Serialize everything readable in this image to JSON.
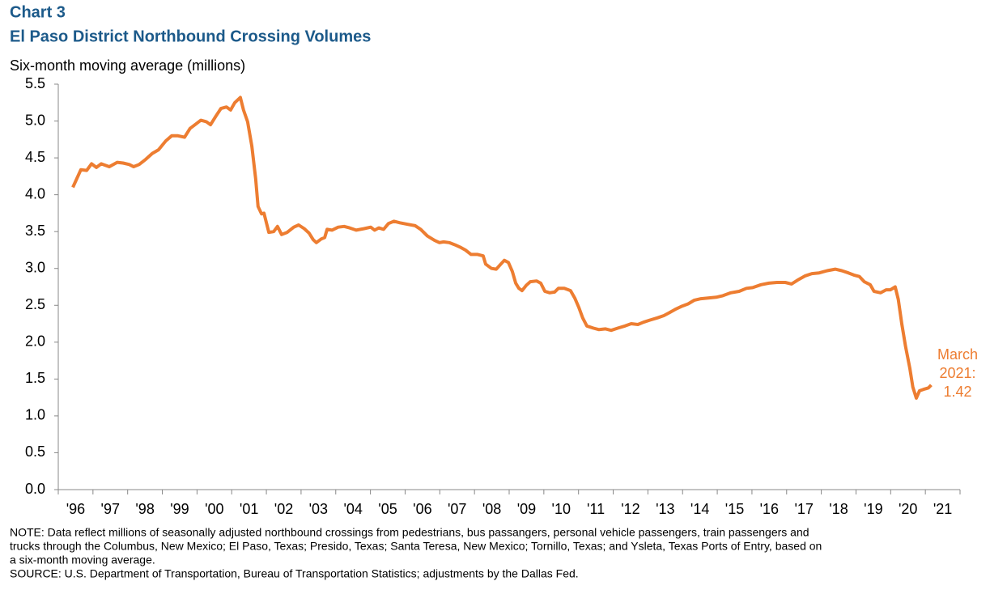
{
  "chart_data": {
    "type": "line",
    "title": "Chart 3",
    "subtitle": "El Paso District Northbound Crossing Volumes",
    "y_label": "Six-month  moving  average (millions)",
    "x": [
      1996.42,
      1996.65,
      1996.82,
      1996.96,
      1997.1,
      1997.24,
      1997.47,
      1997.7,
      1997.87,
      1998.05,
      1998.17,
      1998.33,
      1998.52,
      1998.71,
      1998.89,
      1999.1,
      1999.27,
      1999.45,
      1999.64,
      1999.8,
      1999.97,
      2000.11,
      2000.27,
      2000.39,
      2000.55,
      2000.69,
      2000.85,
      2000.97,
      2001.09,
      2001.25,
      2001.34,
      2001.46,
      2001.58,
      2001.69,
      2001.76,
      2001.86,
      2001.93,
      2002.07,
      2002.21,
      2002.32,
      2002.44,
      2002.6,
      2002.79,
      2002.93,
      2003.09,
      2003.23,
      2003.35,
      2003.44,
      2003.58,
      2003.68,
      2003.75,
      2003.89,
      2004.07,
      2004.24,
      2004.4,
      2004.59,
      2004.82,
      2005.01,
      2005.12,
      2005.24,
      2005.38,
      2005.52,
      2005.68,
      2005.85,
      2006.06,
      2006.29,
      2006.45,
      2006.64,
      2006.85,
      2006.99,
      2007.11,
      2007.27,
      2007.44,
      2007.58,
      2007.74,
      2007.9,
      2008.09,
      2008.25,
      2008.32,
      2008.49,
      2008.63,
      2008.74,
      2008.86,
      2008.98,
      2009.09,
      2009.19,
      2009.28,
      2009.37,
      2009.49,
      2009.61,
      2009.79,
      2009.91,
      2010.03,
      2010.17,
      2010.31,
      2010.42,
      2010.59,
      2010.77,
      2010.89,
      2011.01,
      2011.12,
      2011.24,
      2011.43,
      2011.59,
      2011.78,
      2011.94,
      2012.13,
      2012.34,
      2012.52,
      2012.71,
      2012.87,
      2013.06,
      2013.27,
      2013.46,
      2013.62,
      2013.81,
      2013.99,
      2014.16,
      2014.34,
      2014.53,
      2014.74,
      2014.97,
      2015.16,
      2015.39,
      2015.63,
      2015.84,
      2016.02,
      2016.26,
      2016.49,
      2016.72,
      2016.96,
      2017.14,
      2017.31,
      2017.54,
      2017.73,
      2017.94,
      2018.17,
      2018.4,
      2018.59,
      2018.78,
      2018.94,
      2019.1,
      2019.24,
      2019.41,
      2019.52,
      2019.71,
      2019.87,
      2019.99,
      2020.13,
      2020.22,
      2020.32,
      2020.43,
      2020.55,
      2020.64,
      2020.74,
      2020.83,
      2020.95,
      2021.09,
      2021.17
    ],
    "series": [
      {
        "color": "#ed7d31",
        "values": [
          4.1,
          4.34,
          4.33,
          4.42,
          4.37,
          4.42,
          4.38,
          4.44,
          4.43,
          4.41,
          4.38,
          4.41,
          4.48,
          4.56,
          4.61,
          4.73,
          4.8,
          4.8,
          4.78,
          4.9,
          4.96,
          5.01,
          4.99,
          4.95,
          5.07,
          5.17,
          5.19,
          5.15,
          5.25,
          5.32,
          5.15,
          4.99,
          4.66,
          4.22,
          3.84,
          3.74,
          3.75,
          3.49,
          3.5,
          3.57,
          3.46,
          3.49,
          3.56,
          3.59,
          3.54,
          3.48,
          3.39,
          3.35,
          3.4,
          3.42,
          3.53,
          3.52,
          3.56,
          3.57,
          3.55,
          3.52,
          3.54,
          3.56,
          3.52,
          3.55,
          3.53,
          3.61,
          3.64,
          3.62,
          3.6,
          3.58,
          3.53,
          3.44,
          3.38,
          3.35,
          3.36,
          3.35,
          3.32,
          3.29,
          3.25,
          3.19,
          3.19,
          3.17,
          3.06,
          3.0,
          2.99,
          3.05,
          3.11,
          3.08,
          2.96,
          2.8,
          2.73,
          2.7,
          2.77,
          2.82,
          2.83,
          2.8,
          2.69,
          2.67,
          2.68,
          2.73,
          2.73,
          2.7,
          2.6,
          2.47,
          2.33,
          2.22,
          2.19,
          2.17,
          2.18,
          2.16,
          2.19,
          2.22,
          2.25,
          2.24,
          2.27,
          2.3,
          2.33,
          2.36,
          2.4,
          2.45,
          2.49,
          2.52,
          2.57,
          2.59,
          2.6,
          2.61,
          2.63,
          2.67,
          2.69,
          2.73,
          2.74,
          2.78,
          2.8,
          2.81,
          2.81,
          2.79,
          2.84,
          2.9,
          2.93,
          2.94,
          2.97,
          2.99,
          2.97,
          2.94,
          2.91,
          2.89,
          2.82,
          2.78,
          2.69,
          2.67,
          2.71,
          2.71,
          2.75,
          2.58,
          2.25,
          1.94,
          1.65,
          1.39,
          1.24,
          1.34,
          1.36,
          1.38,
          1.42
        ]
      }
    ],
    "annotation": [
      "March",
      "2021:"
    ],
    "xlim": [
      1996,
      2022
    ],
    "xticks": [
      1996,
      1997,
      1998,
      1999,
      2000,
      2001,
      2002,
      2003,
      2004,
      2005,
      2006,
      2007,
      2008,
      2009,
      2010,
      2011,
      2012,
      2013,
      2014,
      2015,
      2016,
      2017,
      2018,
      2019,
      2020,
      2021,
      2022
    ],
    "xtick_labels": [
      "'96",
      "'97",
      "'98",
      "'99",
      "'00",
      "'01",
      "'02",
      "'03",
      "'04",
      "'05",
      "'06",
      "'07",
      "'08",
      "'09",
      "'10",
      "'11",
      "'12",
      "'13",
      "'14",
      "'15",
      "'16",
      "'17",
      "'18",
      "'19",
      "'20",
      "'21"
    ],
    "ylim": [
      0,
      5.5
    ],
    "yticks": [
      {
        "value": 0,
        "label": "0.0"
      },
      {
        "value": 0.5,
        "label": "0.5"
      },
      {
        "value": 1,
        "label": "1.0"
      },
      {
        "value": 1.5,
        "label": "1.5"
      },
      {
        "value": 2,
        "label": "2.0"
      },
      {
        "value": 2.5,
        "label": "2.5"
      },
      {
        "value": 3,
        "label": "3.0"
      },
      {
        "value": 3.5,
        "label": "3.5"
      },
      {
        "value": 4,
        "label": "4.0"
      },
      {
        "value": 4.5,
        "label": "4.5"
      },
      {
        "value": 5,
        "label": "5.0"
      },
      {
        "value": 5.5,
        "label": "5.5"
      }
    ],
    "grid": false,
    "note": [
      "NOTE:  Data reflect millions  of seasonally adjusted  northbound  crossings from pedestrians, bus passangers, personal vehicle passengers, train passengers and",
      "trucks through the Columbus,  New Mexico; El Paso, Texas;  Presido, Texas;  Santa Teresa, New Mexico; Tornillo, Texas;  and Ysleta, Texas Ports of Entry, based on",
      "a six-month  moving  average."
    ],
    "source": "SOURCE:  U.S. Department of Transportation,  Bureau of Transportation  Statistics; adjustments  by the Dallas Fed."
  }
}
